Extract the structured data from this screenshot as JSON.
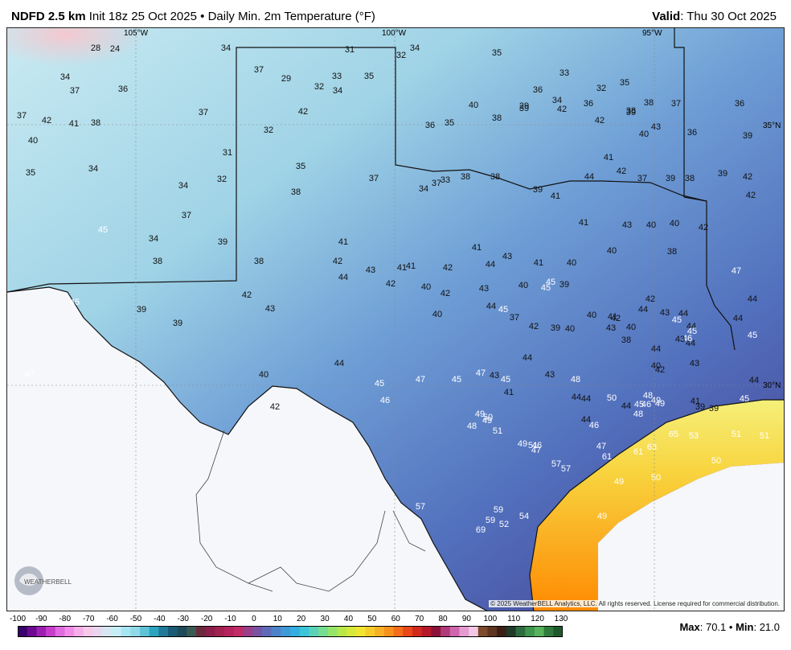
{
  "header": {
    "model": "NDFD 2.5 km",
    "init": "Init 18z 25 Oct 2025",
    "bullet": "•",
    "product": "Daily Min. 2m Temperature (°F)",
    "valid_label": "Valid",
    "valid_value": ": Thu 30 Oct 2025"
  },
  "lon_labels": [
    "105°W",
    "100°W",
    "95°W"
  ],
  "lat_labels": [
    "35°N",
    "30°N"
  ],
  "map_values": [
    "28",
    "24",
    "34",
    "31",
    "32",
    "34",
    "35",
    "37",
    "29",
    "32",
    "33",
    "35",
    "36",
    "33",
    "32",
    "35",
    "34",
    "37",
    "36",
    "37",
    "42",
    "41",
    "38",
    "37",
    "42",
    "34",
    "40",
    "29",
    "34",
    "36",
    "39",
    "38",
    "37",
    "36",
    "40",
    "34",
    "31",
    "32",
    "35",
    "36",
    "35",
    "38",
    "39",
    "42",
    "42",
    "38",
    "40",
    "43",
    "36",
    "39",
    "35",
    "34",
    "32",
    "38",
    "37",
    "34",
    "37",
    "33",
    "38",
    "38",
    "39",
    "41",
    "44",
    "41",
    "42",
    "37",
    "39",
    "38",
    "39",
    "42",
    "42",
    "45",
    "34",
    "38",
    "37",
    "39",
    "38",
    "41",
    "42",
    "41",
    "40",
    "42",
    "41",
    "42",
    "44",
    "43",
    "40",
    "41",
    "45",
    "45",
    "40",
    "39",
    "41",
    "40",
    "43",
    "40",
    "38",
    "40",
    "42",
    "47",
    "44",
    "44",
    "45",
    "44",
    "45",
    "39",
    "39",
    "41",
    "42",
    "40",
    "38",
    "40",
    "42",
    "43",
    "44",
    "46",
    "43",
    "47",
    "45",
    "39",
    "39",
    "42",
    "43",
    "44",
    "43",
    "41",
    "42",
    "40",
    "43",
    "44",
    "45",
    "37",
    "42",
    "39",
    "40",
    "40",
    "41",
    "42",
    "43",
    "44",
    "43",
    "45",
    "44",
    "44",
    "44",
    "45",
    "40",
    "42",
    "44",
    "45",
    "46",
    "47",
    "45",
    "47",
    "43",
    "45",
    "44",
    "41",
    "43",
    "48",
    "44",
    "44",
    "44",
    "45",
    "46",
    "48",
    "49",
    "50",
    "48",
    "49",
    "44",
    "46",
    "47",
    "46",
    "47",
    "48",
    "49",
    "49",
    "50",
    "51",
    "49",
    "51",
    "57",
    "57",
    "61",
    "61",
    "63",
    "65",
    "53",
    "50",
    "51",
    "51",
    "49",
    "50",
    "49",
    "52",
    "54",
    "57",
    "59",
    "59",
    "69"
  ],
  "copyright": "© 2025 WeatherBELL Analytics, LLC. All rights reserved. License required for commercial distribution.",
  "logo_text": "WEATHERBELL",
  "scale_ticks": [
    "-100",
    "-90",
    "-80",
    "-70",
    "-60",
    "-50",
    "-40",
    "-30",
    "-20",
    "-10",
    "0",
    "10",
    "20",
    "30",
    "40",
    "50",
    "60",
    "70",
    "80",
    "90",
    "100",
    "110",
    "120",
    "130"
  ],
  "stats": {
    "max_label": "Max",
    "max_value": ": 70.1",
    "bullet": "•",
    "min_label": "Min",
    "min_value": ": 21.0"
  },
  "colors": {
    "cold": "#a9dbea",
    "mid": "#5f86c8",
    "warm": "#4b3e8c",
    "gulf_warm": "#f9d84a",
    "hot": "#ff8c00"
  }
}
